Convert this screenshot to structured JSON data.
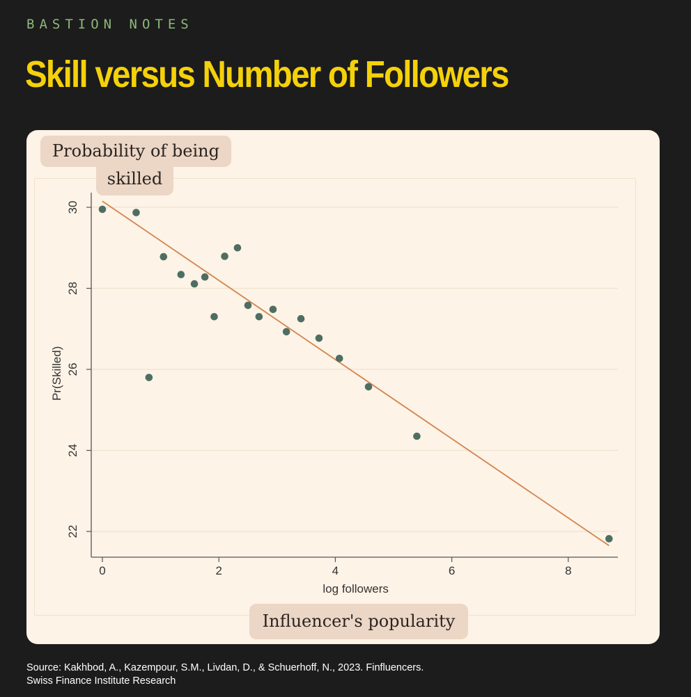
{
  "brand": "BASTION NOTES",
  "title": "Skill versus Number of Followers",
  "callouts": {
    "y_line1": "Probability of being",
    "y_line2": "skilled",
    "x": "Influencer's popularity"
  },
  "source": {
    "line1": "Source: Kakhbod, A., Kazempour, S.M., Livdan, D., & Schuerhoff, N., 2023. Finfluencers.",
    "line2": "Swiss Finance Institute Research"
  },
  "colors": {
    "background": "#1c1c1c",
    "card": "#fdf3e7",
    "title": "#f5d10a",
    "brand": "#8db87a",
    "point": "#4f6e62",
    "fit_line": "#d2854f",
    "callout_bg": "#ecd6c6"
  },
  "chart_data": {
    "type": "scatter",
    "xlabel": "log followers",
    "ylabel": "Pr(Skilled)",
    "xlim": [
      0,
      9
    ],
    "ylim": [
      21.5,
      30.2
    ],
    "x_ticks": [
      "0",
      "2",
      "4",
      "6",
      "8"
    ],
    "y_ticks": [
      "22",
      "24",
      "26",
      "28",
      "30"
    ],
    "grid": "horizontal",
    "points": [
      {
        "x": 0.0,
        "y": 29.95
      },
      {
        "x": 0.58,
        "y": 29.87
      },
      {
        "x": 0.8,
        "y": 25.8
      },
      {
        "x": 1.05,
        "y": 28.78
      },
      {
        "x": 1.35,
        "y": 28.34
      },
      {
        "x": 1.58,
        "y": 28.11
      },
      {
        "x": 1.76,
        "y": 28.28
      },
      {
        "x": 1.92,
        "y": 27.3
      },
      {
        "x": 2.1,
        "y": 28.79
      },
      {
        "x": 2.32,
        "y": 29.0
      },
      {
        "x": 2.5,
        "y": 27.58
      },
      {
        "x": 2.69,
        "y": 27.3
      },
      {
        "x": 2.93,
        "y": 27.48
      },
      {
        "x": 3.16,
        "y": 26.93
      },
      {
        "x": 3.41,
        "y": 27.25
      },
      {
        "x": 3.72,
        "y": 26.77
      },
      {
        "x": 4.07,
        "y": 26.27
      },
      {
        "x": 4.57,
        "y": 25.57
      },
      {
        "x": 5.4,
        "y": 24.35
      },
      {
        "x": 8.7,
        "y": 21.82
      }
    ],
    "fit_line": {
      "x": [
        0,
        8.7
      ],
      "y": [
        30.15,
        21.65
      ]
    }
  }
}
